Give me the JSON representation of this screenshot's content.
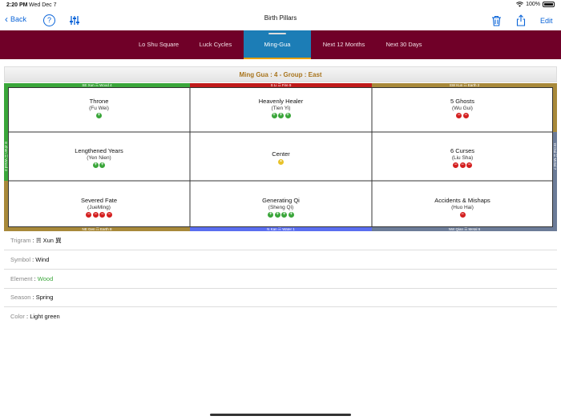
{
  "status": {
    "time": "2:20 PM",
    "date": "Wed Dec 7",
    "battery": "100%"
  },
  "nav": {
    "back_label": "Back",
    "help_label": "?",
    "title": "Birth Pillars",
    "edit_label": "Edit"
  },
  "tabs": [
    {
      "label": "Lo Shu Square"
    },
    {
      "label": "Luck Cycles"
    },
    {
      "label": "Ming-Gua"
    },
    {
      "label": "Next 12 Months"
    },
    {
      "label": "Next 30 Days"
    }
  ],
  "ming_header": "Ming Gua : 4 - Group : East",
  "edges": {
    "top_left": "SE Xun ☴ Wood 4",
    "top_mid": "S Li ☲ Fire 9",
    "top_right": "SW Kun ☷ Earth 2",
    "bottom_left": "NE Gen ☶ Earth 8",
    "bottom_mid": "N Kan ☵ Water 1",
    "bottom_right": "NW Qian ☰ Metal 6",
    "left_mid": "E Zhen ☳ Wood 3",
    "right_mid": "W Dui ☱ Metal 7"
  },
  "colors": {
    "wood": "#3aa63a",
    "fire": "#c01a1a",
    "earth": "#a8893a",
    "water": "#5a6ef0",
    "metal": "#6c7c98",
    "tab_bar": "#700028",
    "tab_active": "#1c7db6"
  },
  "cells": [
    {
      "name": "Throne",
      "sub": "(Fu Wei)",
      "good": 1,
      "bad": 0,
      "neutral": 0
    },
    {
      "name": "Heavenly Healer",
      "sub": "(Tien Yi)",
      "good": 3,
      "bad": 0,
      "neutral": 0
    },
    {
      "name": "5 Ghosts",
      "sub": "(Wu Gui)",
      "good": 0,
      "bad": 2,
      "neutral": 0
    },
    {
      "name": "Lengthened Years",
      "sub": "(Yen Nien)",
      "good": 2,
      "bad": 0,
      "neutral": 0
    },
    {
      "name": "Center",
      "sub": "",
      "good": 0,
      "bad": 0,
      "neutral": 1
    },
    {
      "name": "6 Curses",
      "sub": "(Liu Sha)",
      "good": 0,
      "bad": 3,
      "neutral": 0
    },
    {
      "name": "Severed Fate",
      "sub": "(JueMing)",
      "good": 0,
      "bad": 4,
      "neutral": 0
    },
    {
      "name": "Generating Qi",
      "sub": "(Sheng Qi)",
      "good": 4,
      "bad": 0,
      "neutral": 0
    },
    {
      "name": "Accidents & Mishaps",
      "sub": "(Huo Hai)",
      "good": 0,
      "bad": 1,
      "neutral": 0
    }
  ],
  "info": {
    "trigram_label": "Trigram",
    "trigram_value": "☴ Xun 巽",
    "symbol_label": "Symbol",
    "symbol_value": "Wind",
    "element_label": "Element",
    "element_value": "Wood",
    "season_label": "Season",
    "season_value": "Spring",
    "color_label": "Color",
    "color_value": "Light green"
  }
}
